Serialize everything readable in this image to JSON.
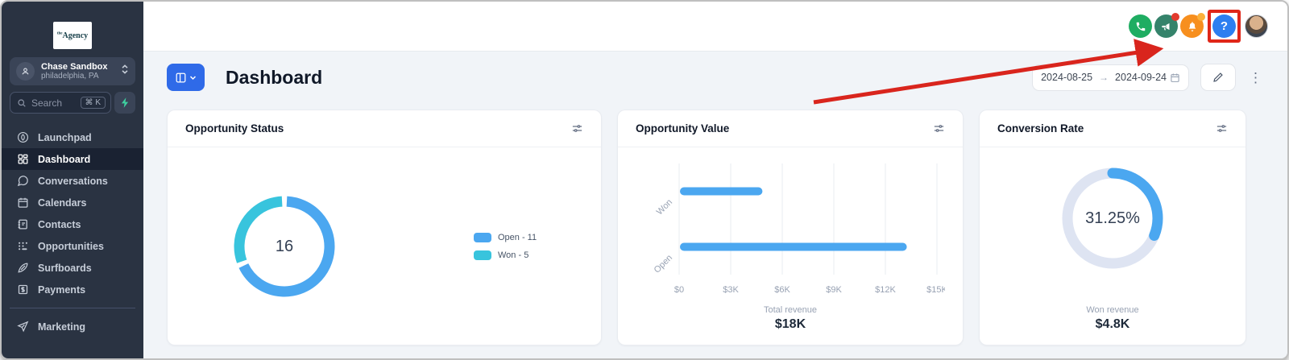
{
  "theme": {
    "accent_blue": "#2F6AE8",
    "chart_blue": "#4BA7F0",
    "chart_cyan": "#38C4DD",
    "gauge_track": "#DEE4F2",
    "annotation_red": "#D9251D",
    "sidebar_bg": "#2A3342"
  },
  "sidebar": {
    "logo": {
      "prefix": "the",
      "name": "Agency"
    },
    "account": {
      "name": "Chase Sandbox",
      "location": "philadelphia, PA"
    },
    "search": {
      "placeholder": "Search",
      "shortcut": "⌘ K"
    },
    "nav": [
      {
        "label": "Launchpad",
        "icon": "launchpad-icon",
        "active": false
      },
      {
        "label": "Dashboard",
        "icon": "dashboard-icon",
        "active": true
      },
      {
        "label": "Conversations",
        "icon": "chat-icon",
        "active": false
      },
      {
        "label": "Calendars",
        "icon": "calendar-icon",
        "active": false
      },
      {
        "label": "Contacts",
        "icon": "contacts-icon",
        "active": false
      },
      {
        "label": "Opportunities",
        "icon": "opportunities-icon",
        "active": false
      },
      {
        "label": "Surfboards",
        "icon": "surfboard-icon",
        "active": false
      },
      {
        "label": "Payments",
        "icon": "payments-icon",
        "active": false
      }
    ],
    "footer_nav": [
      {
        "label": "Marketing",
        "icon": "send-icon"
      }
    ]
  },
  "topbar": {
    "actions": [
      {
        "name": "phone",
        "color": "#1FAD62"
      },
      {
        "name": "announcements",
        "color": "#35836B",
        "badge": "#E23B2E"
      },
      {
        "name": "notifications",
        "color": "#F78F1E",
        "badge": "#FBB03B"
      },
      {
        "name": "help",
        "color": "#2D7FF0",
        "label": "?",
        "highlighted": true
      }
    ],
    "help_label": "?"
  },
  "header": {
    "title": "Dashboard",
    "date_range": {
      "start": "2024-08-25",
      "end": "2024-09-24",
      "separator": "→"
    }
  },
  "annotation": {
    "type": "arrow-and-box-highlight",
    "target": "help-button",
    "color": "#D9251D"
  },
  "chart_data": [
    {
      "type": "pie",
      "subtype": "donut",
      "title": "Opportunity Status",
      "total": 16,
      "total_label": "16",
      "segments": [
        {
          "name": "Open",
          "value": 11,
          "color": "#4BA7F0"
        },
        {
          "name": "Won",
          "value": 5,
          "color": "#38C4DD"
        }
      ],
      "legend": [
        "Open - 11",
        "Won - 5"
      ],
      "legend_position": "right"
    },
    {
      "type": "bar",
      "orientation": "horizontal",
      "title": "Opportunity Value",
      "categories": [
        "Won",
        "Open"
      ],
      "values": [
        4800,
        13200
      ],
      "xlim": [
        0,
        15000
      ],
      "x_ticks": [
        "$0",
        "$3K",
        "$6K",
        "$9K",
        "$12K",
        "$15K"
      ],
      "bar_color": "#4BA7F0",
      "grid": true,
      "footer_label": "Total revenue",
      "footer_value": "$18K"
    },
    {
      "type": "pie",
      "subtype": "gauge",
      "title": "Conversion Rate",
      "value_pct": 31.25,
      "center_label": "31.25%",
      "arc_color": "#4BA7F0",
      "track_color": "#DEE4F2",
      "footer_label": "Won revenue",
      "footer_value": "$4.8K"
    }
  ]
}
